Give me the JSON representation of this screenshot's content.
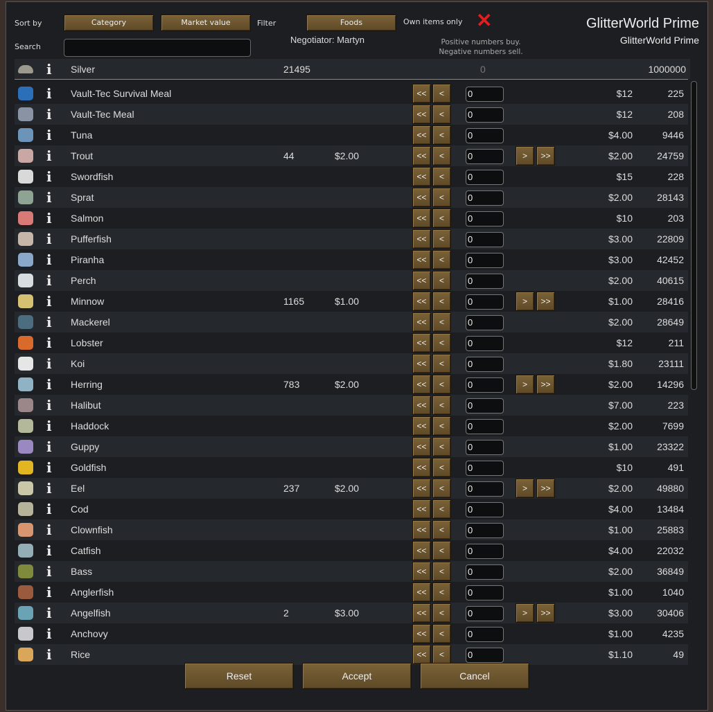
{
  "header": {
    "sort_by": "Sort by",
    "sort1": "Category",
    "sort2": "Market value",
    "filter": "Filter",
    "filter_value": "Foods",
    "own_items": "Own items only",
    "own_items_checked": false,
    "search": "Search",
    "search_value": "",
    "negotiator": "Negotiator: Martyn",
    "hint1": "Positive numbers buy.",
    "hint2": "Negative numbers sell.",
    "trader_title": "GlitterWorld Prime",
    "trader_sub": "GlitterWorld Prime"
  },
  "silver": {
    "name": "Silver",
    "colony_count": "21495",
    "qty": "0",
    "trader_count": "1000000"
  },
  "buttons": {
    "all_left": "<<",
    "left": "<",
    "right": ">",
    "all_right": ">>",
    "reset": "Reset",
    "accept": "Accept",
    "cancel": "Cancel"
  },
  "rows": [
    {
      "name": "Vault-Tec Survival Meal",
      "cc": "",
      "cp": "",
      "qty": "0",
      "tp": "$12",
      "tc": "225",
      "color": "#2a6fb8",
      "sell": false
    },
    {
      "name": "Vault-Tec Meal",
      "cc": "",
      "cp": "",
      "qty": "0",
      "tp": "$12",
      "tc": "208",
      "color": "#8a93a3",
      "sell": false
    },
    {
      "name": "Tuna",
      "cc": "",
      "cp": "",
      "qty": "0",
      "tp": "$4.00",
      "tc": "9446",
      "color": "#6c93b8",
      "sell": false
    },
    {
      "name": "Trout",
      "cc": "44",
      "cp": "$2.00",
      "qty": "0",
      "tp": "$2.00",
      "tc": "24759",
      "color": "#c9a7a4",
      "sell": true
    },
    {
      "name": "Swordfish",
      "cc": "",
      "cp": "",
      "qty": "0",
      "tp": "$15",
      "tc": "228",
      "color": "#d9d9d9",
      "sell": false
    },
    {
      "name": "Sprat",
      "cc": "",
      "cp": "",
      "qty": "0",
      "tp": "$2.00",
      "tc": "28143",
      "color": "#8fa392",
      "sell": false
    },
    {
      "name": "Salmon",
      "cc": "",
      "cp": "",
      "qty": "0",
      "tp": "$10",
      "tc": "203",
      "color": "#d97a76",
      "sell": false
    },
    {
      "name": "Pufferfish",
      "cc": "",
      "cp": "",
      "qty": "0",
      "tp": "$3.00",
      "tc": "22809",
      "color": "#c6b6a9",
      "sell": false
    },
    {
      "name": "Piranha",
      "cc": "",
      "cp": "",
      "qty": "0",
      "tp": "$3.00",
      "tc": "42452",
      "color": "#8aa6c8",
      "sell": false
    },
    {
      "name": "Perch",
      "cc": "",
      "cp": "",
      "qty": "0",
      "tp": "$2.00",
      "tc": "40615",
      "color": "#d8dde0",
      "sell": false
    },
    {
      "name": "Minnow",
      "cc": "1165",
      "cp": "$1.00",
      "qty": "0",
      "tp": "$1.00",
      "tc": "28416",
      "color": "#d6c072",
      "sell": true
    },
    {
      "name": "Mackerel",
      "cc": "",
      "cp": "",
      "qty": "0",
      "tp": "$2.00",
      "tc": "28649",
      "color": "#4c6d80",
      "sell": false
    },
    {
      "name": "Lobster",
      "cc": "",
      "cp": "",
      "qty": "0",
      "tp": "$12",
      "tc": "211",
      "color": "#d86a2c",
      "sell": false
    },
    {
      "name": "Koi",
      "cc": "",
      "cp": "",
      "qty": "0",
      "tp": "$1.80",
      "tc": "23111",
      "color": "#e6e6e6",
      "sell": false
    },
    {
      "name": "Herring",
      "cc": "783",
      "cp": "$2.00",
      "qty": "0",
      "tp": "$2.00",
      "tc": "14296",
      "color": "#8fb3c2",
      "sell": true
    },
    {
      "name": "Halibut",
      "cc": "",
      "cp": "",
      "qty": "0",
      "tp": "$7.00",
      "tc": "223",
      "color": "#9b8789",
      "sell": false
    },
    {
      "name": "Haddock",
      "cc": "",
      "cp": "",
      "qty": "0",
      "tp": "$2.00",
      "tc": "7699",
      "color": "#b3b89a",
      "sell": false
    },
    {
      "name": "Guppy",
      "cc": "",
      "cp": "",
      "qty": "0",
      "tp": "$1.00",
      "tc": "23322",
      "color": "#9a88c0",
      "sell": false
    },
    {
      "name": "Goldfish",
      "cc": "",
      "cp": "",
      "qty": "0",
      "tp": "$10",
      "tc": "491",
      "color": "#e2b623",
      "sell": false
    },
    {
      "name": "Eel",
      "cc": "237",
      "cp": "$2.00",
      "qty": "0",
      "tp": "$2.00",
      "tc": "49880",
      "color": "#c9c7a8",
      "sell": true
    },
    {
      "name": "Cod",
      "cc": "",
      "cp": "",
      "qty": "0",
      "tp": "$4.00",
      "tc": "13484",
      "color": "#b5b39a",
      "sell": false
    },
    {
      "name": "Clownfish",
      "cc": "",
      "cp": "",
      "qty": "0",
      "tp": "$1.00",
      "tc": "25883",
      "color": "#d89670",
      "sell": false
    },
    {
      "name": "Catfish",
      "cc": "",
      "cp": "",
      "qty": "0",
      "tp": "$4.00",
      "tc": "22032",
      "color": "#94aeb5",
      "sell": false
    },
    {
      "name": "Bass",
      "cc": "",
      "cp": "",
      "qty": "0",
      "tp": "$2.00",
      "tc": "36849",
      "color": "#7f8a3c",
      "sell": false
    },
    {
      "name": "Anglerfish",
      "cc": "",
      "cp": "",
      "qty": "0",
      "tp": "$1.00",
      "tc": "1040",
      "color": "#9a5a3e",
      "sell": false
    },
    {
      "name": "Angelfish",
      "cc": "2",
      "cp": "$3.00",
      "qty": "0",
      "tp": "$3.00",
      "tc": "30406",
      "color": "#6aa4b4",
      "sell": true
    },
    {
      "name": "Anchovy",
      "cc": "",
      "cp": "",
      "qty": "0",
      "tp": "$1.00",
      "tc": "4235",
      "color": "#c8c8cc",
      "sell": false
    },
    {
      "name": "Rice",
      "cc": "",
      "cp": "",
      "qty": "0",
      "tp": "$1.10",
      "tc": "49",
      "color": "#d9a65a",
      "sell": false
    }
  ]
}
